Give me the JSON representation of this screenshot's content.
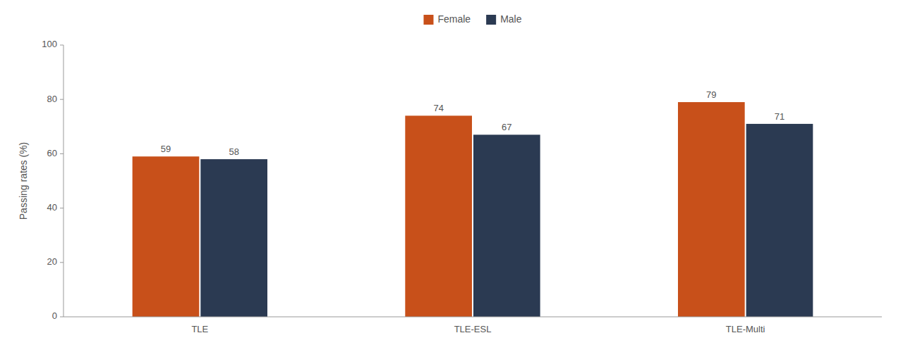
{
  "chart_data": {
    "type": "bar",
    "categories": [
      "TLE",
      "TLE-ESL",
      "TLE-Multi"
    ],
    "series": [
      {
        "name": "Female",
        "color": "#C8501A",
        "values": [
          59,
          74,
          79
        ]
      },
      {
        "name": "Male",
        "color": "#2B3A52",
        "values": [
          58,
          67,
          71
        ]
      }
    ],
    "ylabel": "Passing rates (%)",
    "ylim": [
      0,
      100
    ],
    "yticks": [
      0,
      20,
      40,
      60,
      80,
      100
    ],
    "grid": false,
    "data_labels": true,
    "legend": "top"
  }
}
